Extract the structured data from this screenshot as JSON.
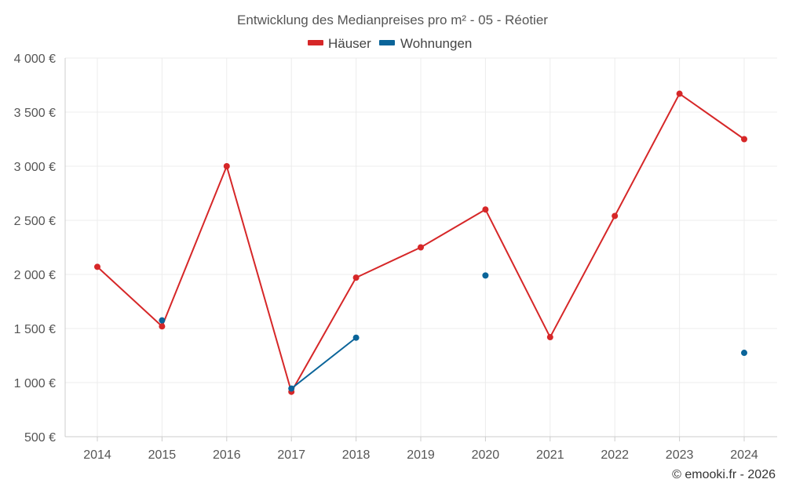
{
  "chart_data": {
    "type": "line",
    "title": "Entwicklung des Medianpreises pro m² - 05 - Réotier",
    "categories": [
      "2014",
      "2015",
      "2016",
      "2017",
      "2018",
      "2019",
      "2020",
      "2021",
      "2022",
      "2023",
      "2024"
    ],
    "ylim": [
      500,
      4000
    ],
    "yticks": [
      500,
      1000,
      1500,
      2000,
      2500,
      3000,
      3500,
      4000
    ],
    "ytick_labels": [
      "500 €",
      "1 000 €",
      "1 500 €",
      "2 000 €",
      "2 500 €",
      "3 000 €",
      "3 500 €",
      "4 000 €"
    ],
    "grid": true,
    "legend_position": "top-center",
    "series": [
      {
        "name": "Häuser",
        "color": "#d62728",
        "values": [
          2070,
          1520,
          3000,
          915,
          1970,
          2250,
          2600,
          1420,
          2540,
          3670,
          3250
        ]
      },
      {
        "name": "Wohnungen",
        "color": "#0a6499",
        "values": [
          null,
          1575,
          null,
          945,
          1415,
          null,
          1990,
          null,
          null,
          null,
          1275
        ]
      }
    ],
    "credit": "© emooki.fr - 2026"
  }
}
